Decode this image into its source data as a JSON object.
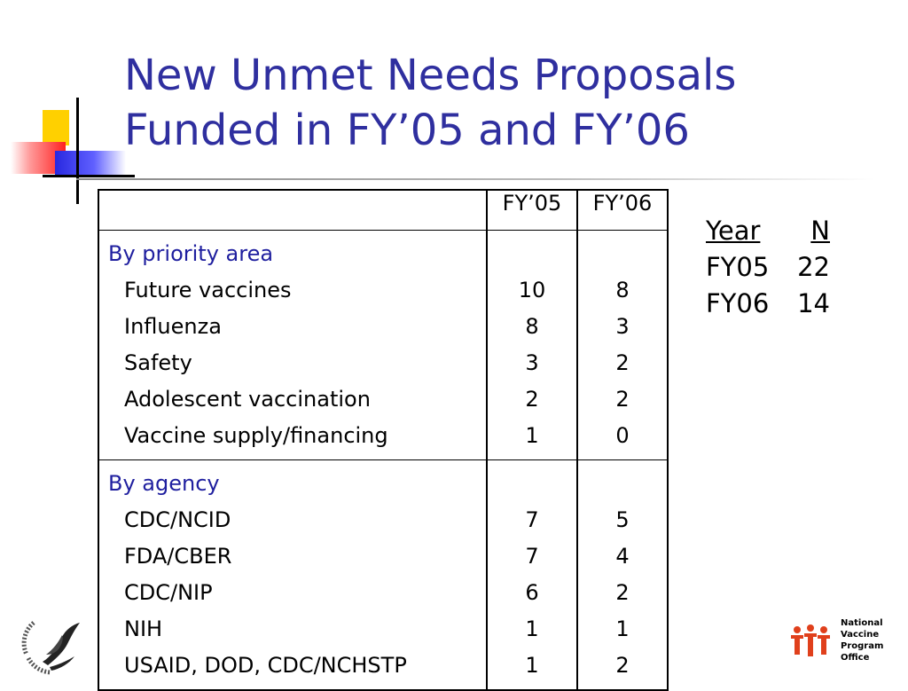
{
  "title": {
    "line1": "New Unmet Needs Proposals",
    "line2": "Funded in FY’05 and FY’06"
  },
  "table": {
    "headers": [
      "",
      "FY’05",
      "FY’06"
    ],
    "sections": [
      {
        "label": "By priority area",
        "rows": [
          {
            "name": "Future vaccines",
            "fy05": "10",
            "fy06": "8"
          },
          {
            "name": "Influenza",
            "fy05": "8",
            "fy06": "3"
          },
          {
            "name": "Safety",
            "fy05": "3",
            "fy06": "2"
          },
          {
            "name": "Adolescent vaccination",
            "fy05": "2",
            "fy06": "2"
          },
          {
            "name": "Vaccine supply/financing",
            "fy05": "1",
            "fy06": "0"
          }
        ]
      },
      {
        "label": "By agency",
        "rows": [
          {
            "name": "CDC/NCID",
            "fy05": "7",
            "fy06": "5"
          },
          {
            "name": "FDA/CBER",
            "fy05": "7",
            "fy06": "4"
          },
          {
            "name": "CDC/NIP",
            "fy05": "6",
            "fy06": "2"
          },
          {
            "name": "NIH",
            "fy05": "1",
            "fy06": "1"
          },
          {
            "name": "USAID, DOD, CDC/NCHSTP",
            "fy05": "1",
            "fy06": "2"
          }
        ]
      }
    ]
  },
  "summary": {
    "header_year": "Year",
    "header_n": "N",
    "rows": [
      {
        "year": "FY05",
        "n": "22"
      },
      {
        "year": "FY06",
        "n": "14"
      }
    ]
  },
  "logos": {
    "nvpo_lines": [
      "National",
      "Vaccine",
      "Program",
      "Office"
    ],
    "hhs_icon": "hhs-eagle-seal-icon",
    "nvpo_icon": "nvpo-figures-icon"
  },
  "colors": {
    "title": "#2f2f9f",
    "section_label": "#1f1f9f",
    "nvpo_red": "#e0401c"
  }
}
